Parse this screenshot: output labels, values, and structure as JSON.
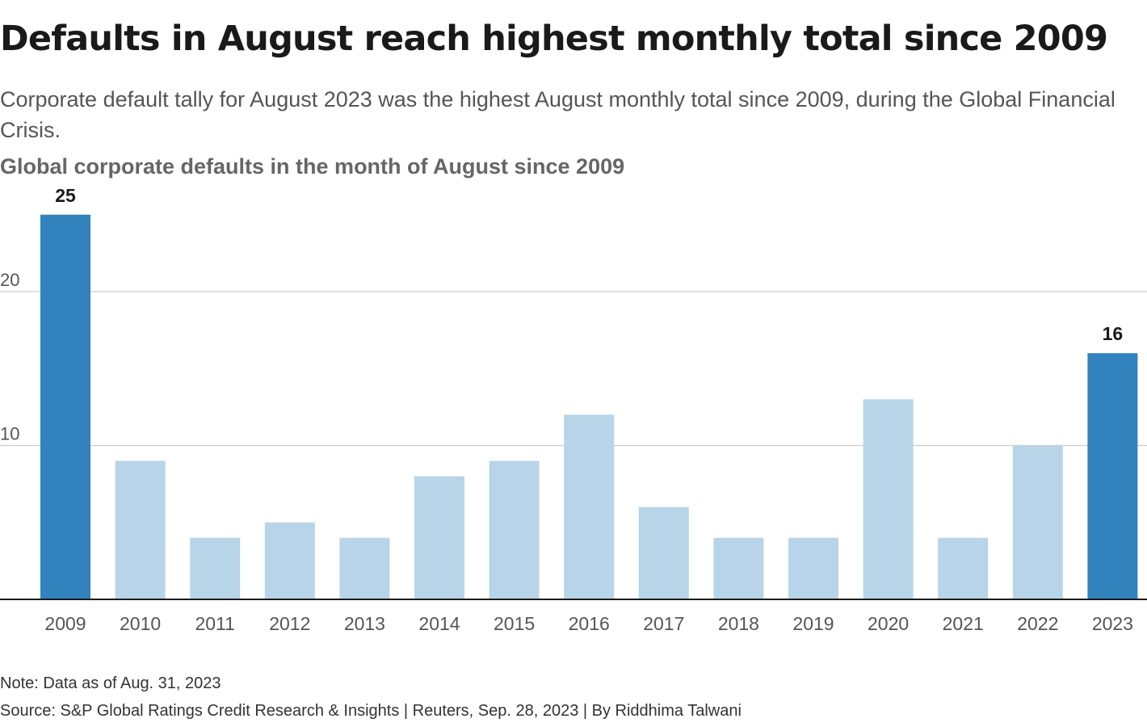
{
  "header": {
    "title": "Defaults in August reach highest monthly total since 2009",
    "subtitle": "Corporate default tally for August 2023 was the highest August monthly total since 2009, during the Global Financial Crisis."
  },
  "footer": {
    "note": "Note: Data as of Aug. 31, 2023",
    "source": "Source: S&P Global Ratings Credit Research & Insights | Reuters, Sep. 28, 2023 | By Riddhima Talwani"
  },
  "colors": {
    "highlight_bar": "#3182bd",
    "regular_bar": "#b8d4e8",
    "gridline": "#cccccc",
    "baseline": "#1a1a1a",
    "tick_text": "#555555",
    "label_text": "#1a1a1a"
  },
  "chart_data": {
    "type": "bar",
    "title": "Global corporate defaults in the month of August since 2009",
    "xlabel": "",
    "ylabel": "",
    "categories": [
      "2009",
      "2010",
      "2011",
      "2012",
      "2013",
      "2014",
      "2015",
      "2016",
      "2017",
      "2018",
      "2019",
      "2020",
      "2021",
      "2022",
      "2023"
    ],
    "values": [
      25,
      9,
      4,
      5,
      4,
      8,
      9,
      12,
      6,
      4,
      4,
      13,
      4,
      10,
      16
    ],
    "highlighted": [
      "2009",
      "2023"
    ],
    "data_labels": [
      {
        "category": "2009",
        "label": "25"
      },
      {
        "category": "2023",
        "label": "16"
      }
    ],
    "yticks": [
      10,
      20
    ],
    "ylim": [
      0,
      25
    ],
    "grid": true,
    "legend": "none"
  }
}
